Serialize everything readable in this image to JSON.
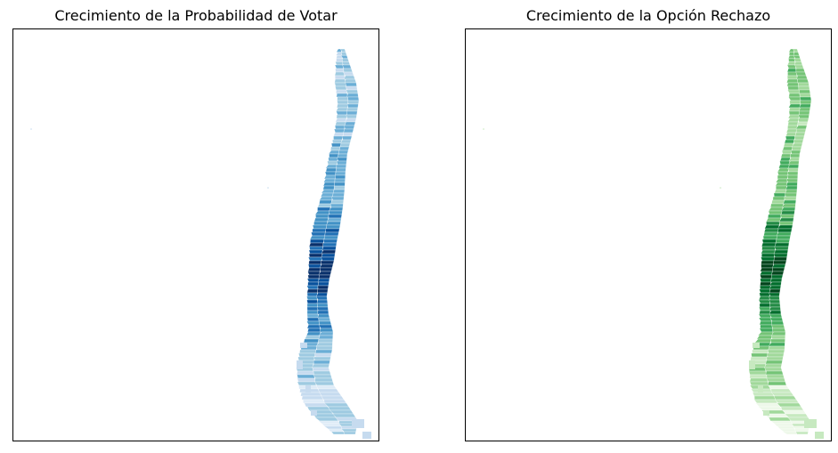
{
  "maps": [
    {
      "title": "Crecimiento de la Probabilidad de Votar",
      "palette": [
        "#deebf7",
        "#c6dbef",
        "#9ecae1",
        "#6baed6",
        "#4292c6",
        "#2171b5",
        "#08519c",
        "#08306b"
      ]
    },
    {
      "title": "Crecimiento de la Opción Rechazo",
      "palette": [
        "#edf8e9",
        "#c7e9c0",
        "#a1d99b",
        "#74c476",
        "#41ab5d",
        "#238b45",
        "#006d2c",
        "#00441b"
      ]
    }
  ]
}
